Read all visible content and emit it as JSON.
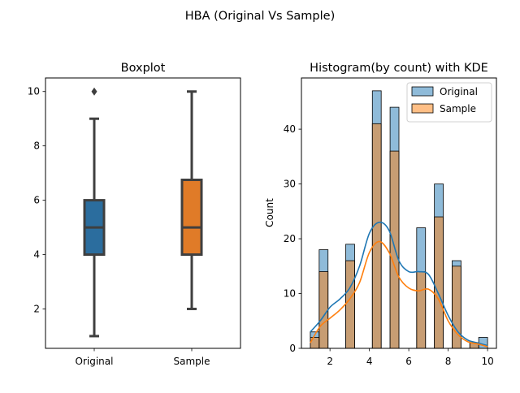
{
  "suptitle": "HBA (Original Vs Sample)",
  "chart_data": [
    {
      "type": "box",
      "title": "Boxplot",
      "xlabel": "",
      "ylabel": "",
      "ylim": [
        0.55,
        10.5
      ],
      "yticks": [
        2,
        4,
        6,
        8,
        10
      ],
      "categories": [
        "Original",
        "Sample"
      ],
      "boxes": [
        {
          "name": "Original",
          "whisker_low": 1,
          "q1": 4,
          "median": 5,
          "q3": 6,
          "whisker_high": 9,
          "outliers": [
            10
          ],
          "color": "#2b6d9e"
        },
        {
          "name": "Sample",
          "whisker_low": 2,
          "q1": 4,
          "median": 5,
          "q3": 6.75,
          "whisker_high": 10,
          "outliers": [],
          "color": "#e07b28"
        }
      ]
    },
    {
      "type": "histogram",
      "title": "Histogram(by count) with KDE",
      "xlabel": "",
      "ylabel": "Count",
      "xlim": [
        0.55,
        10.45
      ],
      "ylim": [
        0,
        49.35
      ],
      "xticks": [
        2,
        4,
        6,
        8,
        10
      ],
      "yticks": [
        0,
        10,
        20,
        30,
        40
      ],
      "bins": [
        {
          "x0": 1.0,
          "x1": 1.45
        },
        {
          "x0": 1.45,
          "x1": 1.9
        },
        {
          "x0": 2.35,
          "x1": 2.8
        },
        {
          "x0": 2.8,
          "x1": 3.25
        },
        {
          "x0": 3.7,
          "x1": 4.15
        },
        {
          "x0": 4.15,
          "x1": 4.6
        },
        {
          "x0": 4.6,
          "x1": 5.05
        },
        {
          "x0": 5.05,
          "x1": 5.5
        },
        {
          "x0": 5.95,
          "x1": 6.4
        },
        {
          "x0": 6.4,
          "x1": 6.85
        },
        {
          "x0": 6.85,
          "x1": 7.3
        },
        {
          "x0": 7.3,
          "x1": 7.75
        },
        {
          "x0": 7.75,
          "x1": 8.2
        },
        {
          "x0": 8.2,
          "x1": 8.65
        },
        {
          "x0": 9.1,
          "x1": 9.55
        },
        {
          "x0": 9.55,
          "x1": 10.0
        }
      ],
      "series": [
        {
          "name": "Original",
          "color": "#1f77b4",
          "counts": [
            3,
            18,
            0,
            19,
            0,
            47,
            0,
            44,
            0,
            22,
            0,
            30,
            0,
            16,
            1,
            2
          ],
          "kde": [
            [
              1.0,
              3
            ],
            [
              1.5,
              5
            ],
            [
              2,
              7.5
            ],
            [
              2.5,
              9
            ],
            [
              3,
              11
            ],
            [
              3.5,
              15
            ],
            [
              4,
              21
            ],
            [
              4.5,
              23
            ],
            [
              5,
              21.5
            ],
            [
              5.5,
              16
            ],
            [
              6,
              14
            ],
            [
              6.5,
              14
            ],
            [
              7,
              13.5
            ],
            [
              7.5,
              10
            ],
            [
              8,
              6
            ],
            [
              8.5,
              3
            ],
            [
              9,
              1.5
            ],
            [
              9.5,
              1
            ],
            [
              10,
              0.5
            ]
          ]
        },
        {
          "name": "Sample",
          "color": "#ff7f0e",
          "counts": [
            2,
            14,
            0,
            16,
            0,
            41,
            0,
            36,
            0,
            14,
            0,
            24,
            0,
            15,
            1,
            0
          ],
          "kde": [
            [
              1.0,
              1
            ],
            [
              1.5,
              4
            ],
            [
              2,
              5.5
            ],
            [
              2.5,
              7
            ],
            [
              3,
              9
            ],
            [
              3.5,
              12
            ],
            [
              4,
              17.5
            ],
            [
              4.5,
              19.5
            ],
            [
              5,
              17.5
            ],
            [
              5.5,
              13
            ],
            [
              6,
              11
            ],
            [
              6.5,
              10.5
            ],
            [
              7,
              10.8
            ],
            [
              7.5,
              9
            ],
            [
              8,
              5
            ],
            [
              8.5,
              2.5
            ],
            [
              9,
              1.2
            ],
            [
              9.5,
              0.8
            ],
            [
              10,
              0.3
            ]
          ]
        }
      ],
      "legend_position": "upper-right"
    }
  ]
}
